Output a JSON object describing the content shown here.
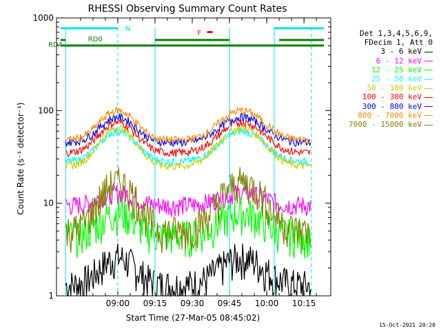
{
  "chart_data": {
    "type": "line",
    "title": "RHESSI Observing Summary Count Rates",
    "xlabel": "Start Time (27-Mar-05 08:45:02)",
    "ylabel": "Count Rate (s⁻¹ detector⁻¹)",
    "yscale": "log",
    "ylim": [
      1,
      1000
    ],
    "y_tick_labels": [
      "1",
      "10",
      "100",
      "1000"
    ],
    "xlim_minutes": [
      -10,
      83
    ],
    "x_ticks": [
      {
        "m": 15,
        "label": "09:00"
      },
      {
        "m": 30,
        "label": "09:15"
      },
      {
        "m": 45,
        "label": "09:30"
      },
      {
        "m": 60,
        "label": "09:45"
      },
      {
        "m": 75,
        "label": "10:00"
      },
      {
        "m": 90,
        "label": "10:15"
      }
    ],
    "legend_header": [
      "Det 1,3,4,5,6,9,",
      "FDecim 1, Att 0"
    ],
    "legend_position": "right",
    "series": [
      {
        "name": "3 - 6 keV",
        "color": "#000000",
        "peak": 2.6,
        "floor": 1.3
      },
      {
        "name": "6 - 12 keV",
        "color": "#ff00ff",
        "peak": 13,
        "floor": 9.5
      },
      {
        "name": "12 - 25 keV",
        "color": "#00ff00",
        "peak": 8,
        "floor": 4.5
      },
      {
        "name": "25 - 50 keV",
        "color": "#00ffff",
        "peak": 60,
        "floor": 28
      },
      {
        "name": "50 - 100 keV",
        "color": "#cccc00",
        "peak": 65,
        "floor": 25
      },
      {
        "name": "100 - 300 keV",
        "color": "#ff0000",
        "peak": 75,
        "floor": 35
      },
      {
        "name": "300 - 800 keV",
        "color": "#0000ff",
        "peak": 85,
        "floor": 45
      },
      {
        "name": "800 - 7000 keV",
        "color": "#ff8800",
        "peak": 100,
        "floor": 48
      },
      {
        "name": "7000 - 15000 keV",
        "color": "#808000",
        "peak": 17,
        "floor": 5
      }
    ],
    "flag_bars": [
      {
        "label": "N",
        "color": "#00e0ff"
      },
      {
        "label": "F",
        "color": "#ff0000"
      },
      {
        "label": "RD0",
        "color": "#008000"
      },
      {
        "label": "RD4",
        "color": "#008000"
      }
    ],
    "timestamp": "15-Oct-2021 20:20"
  }
}
